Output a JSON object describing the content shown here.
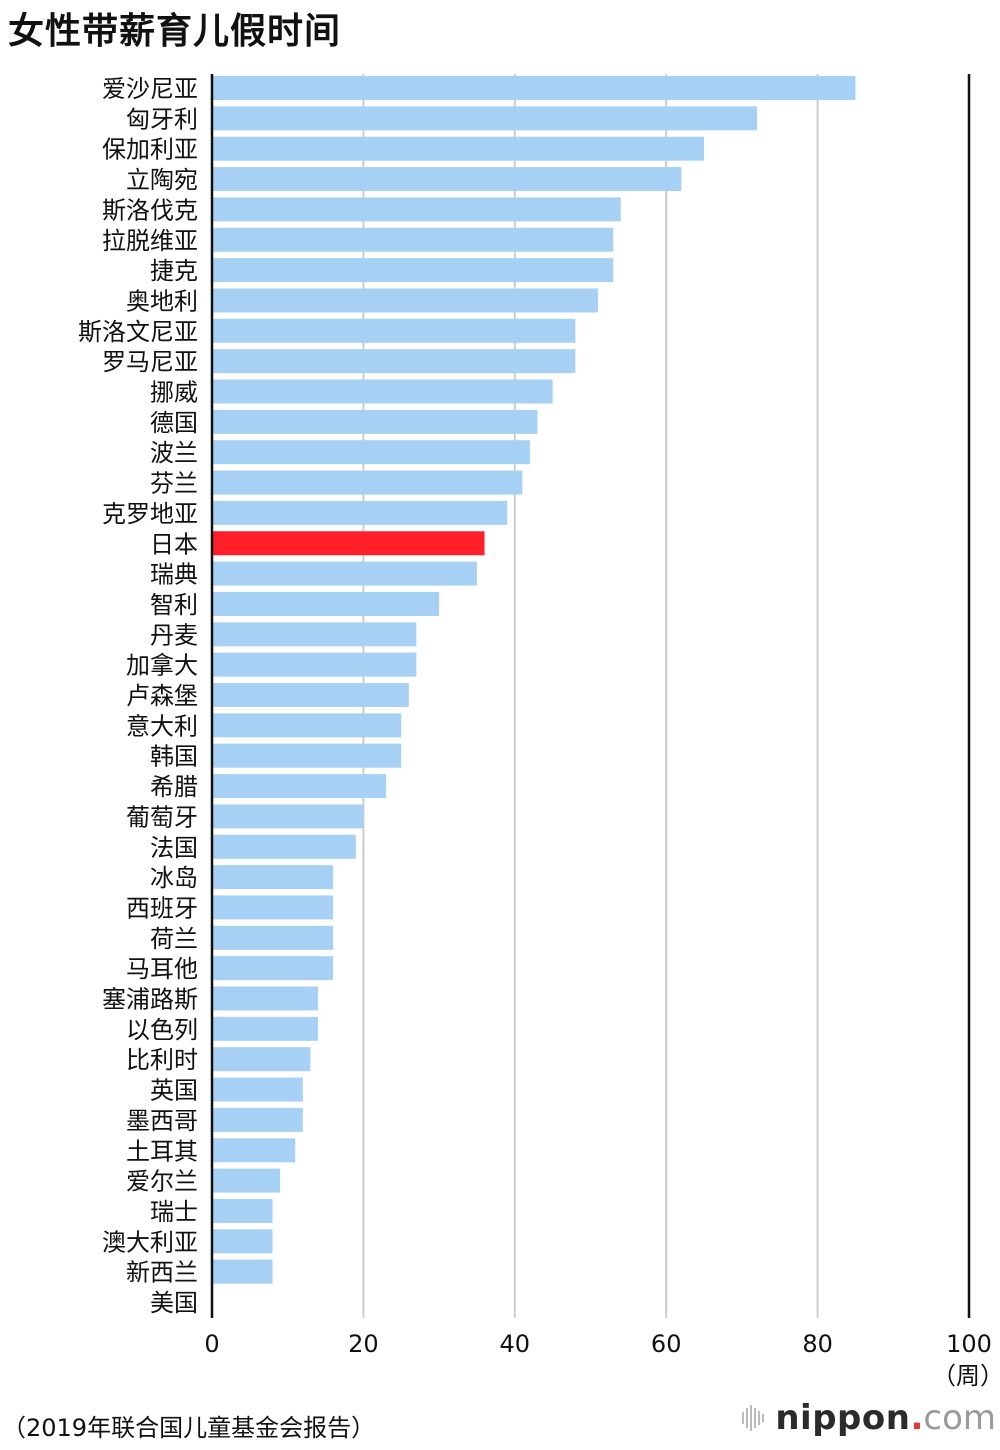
{
  "title": "女性带薪育儿假时间",
  "footer": {
    "source": "（2019年联合国儿童基金会报告）",
    "brand_name": "nippon",
    "brand_dot": ".",
    "brand_suffix": "com"
  },
  "colors": {
    "bar": "#a6d1f5",
    "highlight": "#ff1f28",
    "grid": "#cccccc",
    "axis": "#111111"
  },
  "chart_data": {
    "type": "bar",
    "orientation": "horizontal",
    "title": "女性带薪育儿假时间",
    "unit_label": "（周）",
    "xlim": [
      0,
      100
    ],
    "xticks": [
      0,
      20,
      40,
      60,
      80,
      100
    ],
    "grid": true,
    "highlight_category": "日本",
    "categories": [
      "爱沙尼亚",
      "匈牙利",
      "保加利亚",
      "立陶宛",
      "斯洛伐克",
      "拉脱维亚",
      "捷克",
      "奥地利",
      "斯洛文尼亚",
      "罗马尼亚",
      "挪威",
      "德国",
      "波兰",
      "芬兰",
      "克罗地亚",
      "日本",
      "瑞典",
      "智利",
      "丹麦",
      "加拿大",
      "卢森堡",
      "意大利",
      "韩国",
      "希腊",
      "葡萄牙",
      "法国",
      "冰岛",
      "西班牙",
      "荷兰",
      "马耳他",
      "塞浦路斯",
      "以色列",
      "比利时",
      "英国",
      "墨西哥",
      "土耳其",
      "爱尔兰",
      "瑞士",
      "澳大利亚",
      "新西兰",
      "美国"
    ],
    "values": [
      85,
      72,
      65,
      62,
      54,
      53,
      53,
      51,
      48,
      48,
      45,
      43,
      42,
      41,
      39,
      36,
      35,
      30,
      27,
      27,
      26,
      25,
      25,
      23,
      20,
      19,
      16,
      16,
      16,
      16,
      14,
      14,
      13,
      12,
      12,
      11,
      9,
      8,
      8,
      8,
      0
    ]
  }
}
